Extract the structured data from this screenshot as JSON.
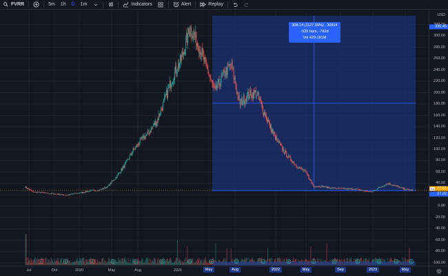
{
  "toolbar": {
    "symbol": "FVRR",
    "intervals": [
      {
        "label": "5m",
        "active": false
      },
      {
        "label": "1h",
        "active": false
      },
      {
        "label": "D",
        "active": true
      },
      {
        "label": "1m",
        "active": false
      }
    ],
    "indicators_label": "Indicators",
    "alert_label": "Alert",
    "replay_label": "Replay"
  },
  "price_scale": {
    "currency": "USD",
    "labels": [
      "320.00",
      "300.00",
      "280.00",
      "260.00",
      "240.00",
      "220.00",
      "200.00",
      "180.00",
      "160.00",
      "140.00",
      "120.00",
      "100.00",
      "80.00",
      "60.00",
      "40.00",
      "20.00",
      "0.00",
      "-20.00",
      "-40.00",
      "-60.00",
      "-80.00",
      "-100.00"
    ],
    "range_top_label": "335.45",
    "current_price_label": "27.51",
    "symbol_tag": "Fiv",
    "lower_price_label": "27.32"
  },
  "time_scale": {
    "labels": [
      "Jul",
      "Oct",
      "2020",
      "May",
      "Aug",
      "2021",
      "May",
      "Aug",
      "2022",
      "May",
      "Sep",
      "2023",
      "May"
    ]
  },
  "measure_tooltip": {
    "line1": "308.14 (1127.99%) , 30814",
    "line2": "-525 bars, -762d",
    "line3": "Vol 429.181M"
  },
  "logo": "TV",
  "colors": {
    "background": "#131722",
    "up": "#26a69a",
    "down": "#ef5350",
    "measure_fill": "#1e3a8a",
    "measure_line": "#2962ff",
    "current_price": "#f7a600"
  },
  "chart_data": {
    "type": "candlestick",
    "ylim": [
      -105,
      345
    ],
    "x": [
      "2019-06",
      "2019-07",
      "2019-08",
      "2019-09",
      "2019-10",
      "2019-11",
      "2019-12",
      "2020-01",
      "2020-02",
      "2020-03",
      "2020-04",
      "2020-05",
      "2020-06",
      "2020-07",
      "2020-08",
      "2020-09",
      "2020-10",
      "2020-11",
      "2020-12",
      "2021-01",
      "2021-02",
      "2021-03",
      "2021-04",
      "2021-05",
      "2021-06",
      "2021-07",
      "2021-08",
      "2021-09",
      "2021-10",
      "2021-11",
      "2021-12",
      "2022-01",
      "2022-02",
      "2022-03",
      "2022-04",
      "2022-05",
      "2022-06",
      "2022-07",
      "2022-08",
      "2022-09",
      "2022-10",
      "2022-11",
      "2022-12",
      "2023-01",
      "2023-02",
      "2023-03",
      "2023-04",
      "2023-05"
    ],
    "close": [
      34,
      25,
      24,
      22,
      21,
      19,
      22,
      24,
      27,
      28,
      34,
      50,
      70,
      95,
      115,
      130,
      150,
      190,
      230,
      260,
      315,
      285,
      245,
      200,
      230,
      250,
      180,
      195,
      200,
      165,
      130,
      105,
      85,
      70,
      60,
      35,
      35,
      32,
      31,
      30,
      30,
      27,
      25,
      33,
      40,
      35,
      30,
      27.5
    ],
    "volume_max": 60,
    "measure": {
      "from_price": 27.32,
      "to_price": 335.45,
      "change": "308.14 (1127.99%)",
      "bars": -525,
      "days": -762,
      "volume": "429.181M"
    },
    "event_badges": [
      "E",
      "E",
      "D",
      "D",
      "D",
      "D",
      "D",
      "D",
      "D",
      "D",
      "D",
      "D",
      "D",
      "D",
      "D",
      "D",
      "D"
    ]
  }
}
